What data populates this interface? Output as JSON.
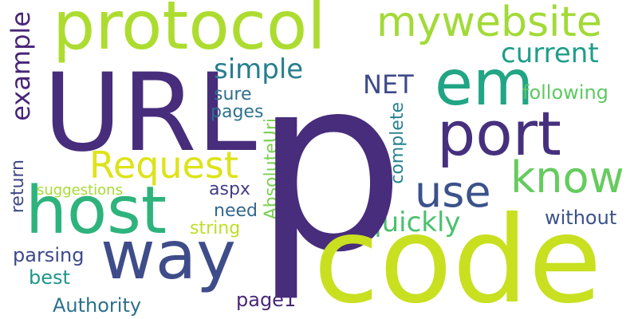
{
  "words": {
    "p": {
      "text": "p",
      "color": "#472d7b"
    },
    "code": {
      "text": "code",
      "color": "#c8e020"
    },
    "url": {
      "text": "URL",
      "color": "#472d7b"
    },
    "protocol": {
      "text": "protocol",
      "color": "#addc30"
    },
    "host": {
      "text": "host",
      "color": "#2eb37c"
    },
    "way": {
      "text": "way",
      "color": "#3e4c8a"
    },
    "em": {
      "text": "em",
      "color": "#21a585"
    },
    "port": {
      "text": "port",
      "color": "#46307e"
    },
    "mywebsite": {
      "text": "mywebsite",
      "color": "#a2da37"
    },
    "know": {
      "text": "know",
      "color": "#65cb5e"
    },
    "use": {
      "text": "use",
      "color": "#3b528b"
    },
    "request": {
      "text": "Request",
      "color": "#dde318"
    },
    "current": {
      "text": "current",
      "color": "#1f9e89"
    },
    "simple": {
      "text": "simple",
      "color": "#277f8e"
    },
    "net": {
      "text": "NET",
      "color": "#3e4a89"
    },
    "quickly": {
      "text": "quickly",
      "color": "#4ac16d"
    },
    "following": {
      "text": "following",
      "color": "#5ec962"
    },
    "without": {
      "text": "without",
      "color": "#3b528b"
    },
    "sure": {
      "text": "sure",
      "color": "#2e6e8e"
    },
    "pages": {
      "text": "pages",
      "color": "#2c728e"
    },
    "aspx": {
      "text": "aspx",
      "color": "#433e85"
    },
    "need": {
      "text": "need",
      "color": "#31688e"
    },
    "string": {
      "text": "string",
      "color": "#bddf26"
    },
    "page1": {
      "text": "page1",
      "color": "#482878"
    },
    "suggestions": {
      "text": "suggestions",
      "color": "#a8db34"
    },
    "parsing": {
      "text": "parsing",
      "color": "#3e4989"
    },
    "best": {
      "text": "best",
      "color": "#1f968b"
    },
    "authority": {
      "text": "Authority",
      "color": "#2d708e"
    },
    "example": {
      "text": "example",
      "color": "#482677"
    },
    "return": {
      "text": "return",
      "color": "#3f4788"
    },
    "absoluteuri": {
      "text": "AbsoluteUri",
      "color": "#7ad151"
    },
    "complete": {
      "text": "complete",
      "color": "#26828e"
    }
  }
}
